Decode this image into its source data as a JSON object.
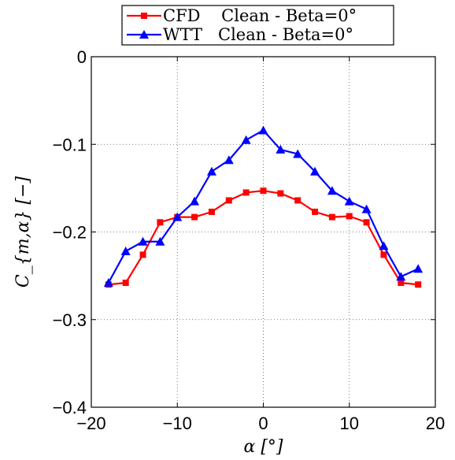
{
  "chart_data": {
    "type": "line",
    "xlabel": "α [°]",
    "ylabel": "C_{m,α} [−]",
    "xlim": [
      -20,
      20
    ],
    "ylim": [
      -0.4,
      0
    ],
    "xticks": [
      -20,
      -10,
      0,
      10,
      20
    ],
    "yticks": [
      0,
      -0.1,
      -0.2,
      -0.3,
      -0.4
    ],
    "xtick_labels": [
      "−20",
      "−10",
      "0",
      "10",
      "20"
    ],
    "ytick_labels": [
      "0",
      "−0.1",
      "−0.2",
      "−0.3",
      "−0.4"
    ],
    "grid": true,
    "legend_position": "top-center",
    "series": [
      {
        "name": "CFD    Clean - Beta=0°",
        "color": "#ff0000",
        "marker": "square",
        "x": [
          -18,
          -16,
          -14,
          -12,
          -10,
          -8,
          -6,
          -4,
          -2,
          0,
          2,
          4,
          6,
          8,
          10,
          12,
          14,
          16,
          18
        ],
        "y": [
          -0.26,
          -0.258,
          -0.226,
          -0.189,
          -0.183,
          -0.183,
          -0.177,
          -0.164,
          -0.155,
          -0.153,
          -0.156,
          -0.164,
          -0.177,
          -0.183,
          -0.182,
          -0.189,
          -0.226,
          -0.258,
          -0.26
        ]
      },
      {
        "name": "WTT   Clean - Beta=0°",
        "color": "#0000ff",
        "marker": "triangle",
        "x": [
          -18,
          -16,
          -14,
          -12,
          -10,
          -8,
          -6,
          -4,
          -2,
          0,
          2,
          4,
          6,
          8,
          10,
          12,
          14,
          16,
          18
        ],
        "y": [
          -0.258,
          -0.222,
          -0.211,
          -0.211,
          -0.183,
          -0.165,
          -0.131,
          -0.118,
          -0.095,
          -0.084,
          -0.106,
          -0.111,
          -0.131,
          -0.153,
          -0.165,
          -0.174,
          -0.216,
          -0.251,
          -0.242
        ]
      }
    ]
  }
}
